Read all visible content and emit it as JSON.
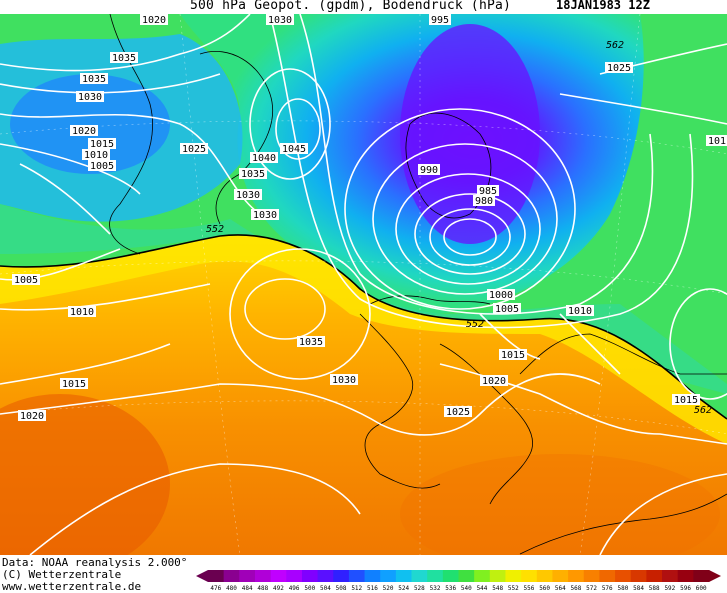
{
  "header": {
    "title": "500 hPa Geopot. (gpdm), Bodendruck (hPa)",
    "date": "18JAN1983 12Z"
  },
  "footer": {
    "source": "Data: NOAA reanalysis 2.000°",
    "copyright": "(C) Wetterzentrale",
    "website": "www.wetterzentrale.de"
  },
  "legend": {
    "ticks": [
      "476",
      "480",
      "484",
      "488",
      "492",
      "496",
      "500",
      "504",
      "508",
      "512",
      "516",
      "520",
      "524",
      "528",
      "532",
      "536",
      "540",
      "544",
      "548",
      "552",
      "556",
      "560",
      "564",
      "568",
      "572",
      "576",
      "580",
      "584",
      "588",
      "592",
      "596",
      "600"
    ],
    "colors": [
      "#6a0050",
      "#8a0090",
      "#a000b8",
      "#b000d8",
      "#c000ff",
      "#a800ff",
      "#8000ff",
      "#5a10ff",
      "#3020ff",
      "#2050ff",
      "#1080ff",
      "#10a0ff",
      "#10c0f0",
      "#20d8d0",
      "#20e0a0",
      "#20e070",
      "#40e040",
      "#80f020",
      "#c0f010",
      "#f0f000",
      "#ffe000",
      "#ffc800",
      "#ffb000",
      "#ff9800",
      "#f88000",
      "#f06800",
      "#e85000",
      "#d83800",
      "#c82000",
      "#b01010",
      "#980010",
      "#800018"
    ]
  },
  "map_labels": {
    "isobars": [
      {
        "text": "1020"
      },
      {
        "text": "1030"
      },
      {
        "text": "995"
      },
      {
        "text": "562"
      },
      {
        "text": "1035"
      },
      {
        "text": "1025"
      },
      {
        "text": "1035"
      },
      {
        "text": "1030"
      },
      {
        "text": "1020"
      },
      {
        "text": "1015"
      },
      {
        "text": "1010"
      },
      {
        "text": "1005"
      },
      {
        "text": "1025"
      },
      {
        "text": "1045"
      },
      {
        "text": "1040"
      },
      {
        "text": "1035"
      },
      {
        "text": "1030"
      },
      {
        "text": "1030"
      },
      {
        "text": "990"
      },
      {
        "text": "985"
      },
      {
        "text": "980"
      },
      {
        "text": "101"
      },
      {
        "text": "552"
      },
      {
        "text": "1005"
      },
      {
        "text": "1010"
      },
      {
        "text": "1035"
      },
      {
        "text": "1030"
      },
      {
        "text": "1000"
      },
      {
        "text": "1005"
      },
      {
        "text": "552"
      },
      {
        "text": "1010"
      },
      {
        "text": "1015"
      },
      {
        "text": "1015"
      },
      {
        "text": "1020"
      },
      {
        "text": "1020"
      },
      {
        "text": "1025"
      },
      {
        "text": "1015"
      },
      {
        "text": "562"
      }
    ]
  }
}
